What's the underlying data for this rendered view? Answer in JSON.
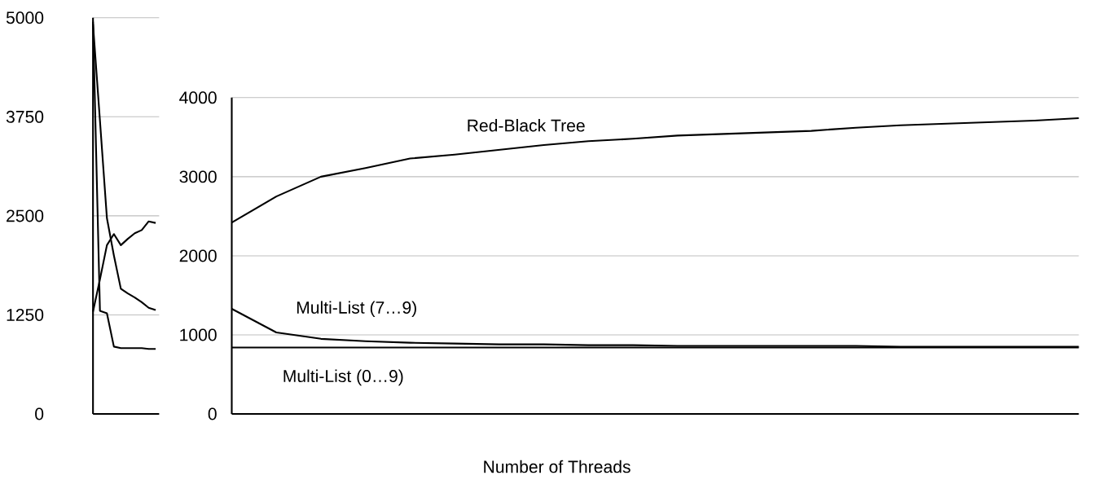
{
  "chart_data": [
    {
      "type": "line",
      "categories": [
        null,
        null,
        null,
        null,
        null,
        null,
        null,
        null,
        null,
        null
      ],
      "ylim": [
        0,
        5000
      ],
      "yticks": [
        0,
        1250,
        2500,
        3750,
        5000
      ],
      "grid": "y",
      "tick_labels": "y",
      "marker": "none",
      "line_style": "solid",
      "series": [
        {
          "color": "#000000",
          "values": [
            1290,
            1700,
            2130,
            2270,
            2130,
            2210,
            2280,
            2320,
            2430,
            2410
          ]
        },
        {
          "color": "#000000",
          "values": [
            4920,
            3700,
            2470,
            2000,
            1580,
            1520,
            1470,
            1410,
            1340,
            1310
          ]
        },
        {
          "color": "#000000",
          "values": [
            4950,
            1300,
            1270,
            850,
            830,
            830,
            830,
            830,
            820,
            820
          ]
        }
      ]
    },
    {
      "type": "line",
      "categories": [
        null,
        null,
        null,
        null,
        null,
        null,
        null,
        null,
        null,
        null,
        null,
        null,
        null,
        null,
        null,
        null,
        null,
        null,
        null,
        null
      ],
      "xlabel": "Number of Threads",
      "ylim": [
        0,
        4000
      ],
      "yticks": [
        0,
        1000,
        2000,
        3000,
        4000
      ],
      "grid": "y",
      "tick_labels": "y",
      "marker": "none",
      "line_style": "solid",
      "series": [
        {
          "name": "Red-Black Tree",
          "color": "#000000",
          "values": [
            2420,
            2750,
            3000,
            3110,
            3230,
            3280,
            3340,
            3400,
            3450,
            3480,
            3520,
            3540,
            3560,
            3580,
            3620,
            3650,
            3670,
            3690,
            3710,
            3740
          ]
        },
        {
          "name": "Multi-List (7…9)",
          "color": "#000000",
          "values": [
            1330,
            1030,
            950,
            920,
            900,
            890,
            880,
            880,
            870,
            870,
            860,
            860,
            860,
            860,
            860,
            850,
            850,
            850,
            850,
            850
          ]
        },
        {
          "name": "Multi-List (0…9)",
          "color": "#000000",
          "values": [
            840,
            840,
            840,
            840,
            840,
            840,
            840,
            840,
            840,
            840,
            840,
            840,
            840,
            840,
            840,
            840,
            840,
            840,
            840,
            840
          ]
        }
      ]
    }
  ]
}
